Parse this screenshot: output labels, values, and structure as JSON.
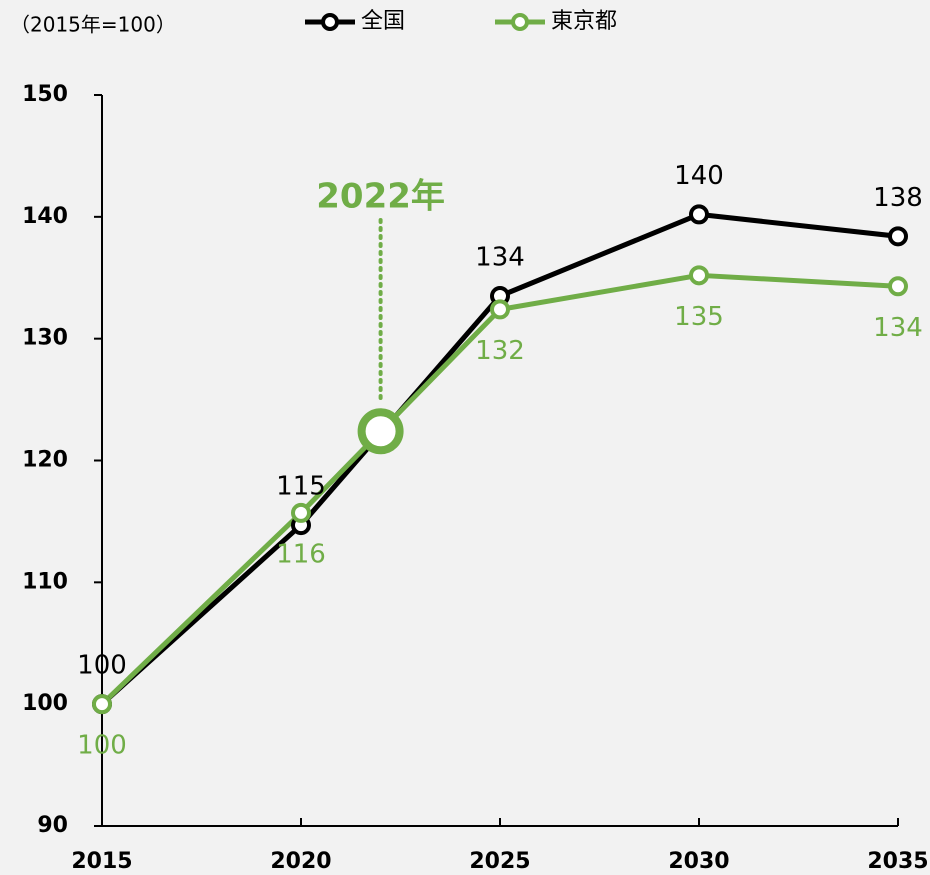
{
  "chart_data": {
    "type": "line",
    "unit_label": "（2015年=100）",
    "x": [
      2015,
      2020,
      2025,
      2030,
      2035
    ],
    "series": [
      {
        "name": "全国",
        "color": "#000000",
        "values": [
          100,
          114.7,
          133.5,
          140.2,
          138.4
        ],
        "value_labels": [
          "100",
          "115",
          "134",
          "140",
          "138"
        ],
        "label_position": "above"
      },
      {
        "name": "東京都",
        "color": "#70ad47",
        "values": [
          100,
          115.7,
          132.4,
          135.2,
          134.3
        ],
        "value_labels": [
          "100",
          "116",
          "132",
          "135",
          "134"
        ],
        "label_position": "below"
      }
    ],
    "annotation": {
      "text": "2022年",
      "x": 2022,
      "y": 122.4,
      "color": "#70ad47"
    },
    "xlim": [
      2015,
      2035
    ],
    "xticks": [
      2015,
      2020,
      2025,
      2030,
      2035
    ],
    "ylim": [
      90,
      150
    ],
    "yticks": [
      90,
      100,
      110,
      120,
      130,
      140,
      150
    ],
    "grid": false,
    "legend": "top"
  }
}
